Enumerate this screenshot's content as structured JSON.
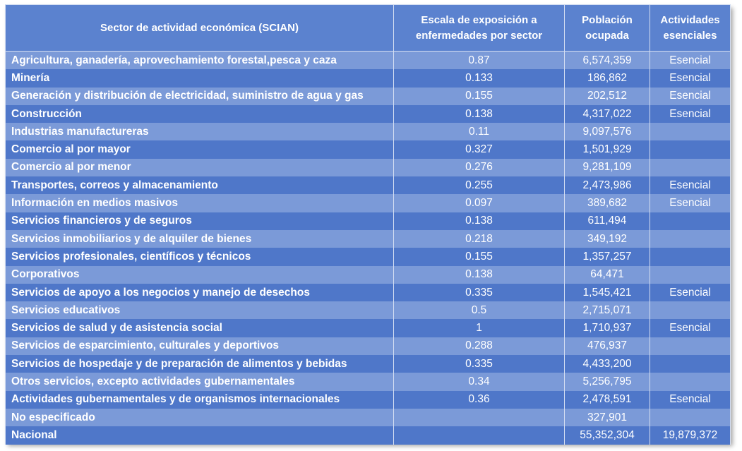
{
  "headers": {
    "sector": "Sector de actividad económica (SCIAN)",
    "scale": "Escala de exposición a enfermedades por sector",
    "population": "Población ocupada",
    "essential": "Actividades esenciales"
  },
  "rows": [
    {
      "sector": "Agricultura, ganadería, aprovechamiento forestal,pesca y caza",
      "scale": "0.87",
      "population": "6,574,359",
      "essential": "Esencial"
    },
    {
      "sector": "Minería",
      "scale": "0.133",
      "population": "186,862",
      "essential": "Esencial"
    },
    {
      "sector": "Generación y distribución de electricidad, suministro de agua y gas",
      "scale": "0.155",
      "population": "202,512",
      "essential": "Esencial"
    },
    {
      "sector": "Construcción",
      "scale": "0.138",
      "population": "4,317,022",
      "essential": "Esencial"
    },
    {
      "sector": "Industrias manufactureras",
      "scale": "0.11",
      "population": "9,097,576",
      "essential": ""
    },
    {
      "sector": "Comercio al por mayor",
      "scale": "0.327",
      "population": "1,501,929",
      "essential": ""
    },
    {
      "sector": "Comercio al por menor",
      "scale": "0.276",
      "population": "9,281,109",
      "essential": ""
    },
    {
      "sector": "Transportes, correos y almacenamiento",
      "scale": "0.255",
      "population": "2,473,986",
      "essential": "Esencial"
    },
    {
      "sector": "Información en medios masivos",
      "scale": "0.097",
      "population": "389,682",
      "essential": "Esencial"
    },
    {
      "sector": "Servicios financieros y de seguros",
      "scale": "0.138",
      "population": "611,494",
      "essential": ""
    },
    {
      "sector": "Servicios inmobiliarios y de alquiler de bienes",
      "scale": "0.218",
      "population": "349,192",
      "essential": ""
    },
    {
      "sector": "Servicios profesionales, científicos y técnicos",
      "scale": "0.155",
      "population": "1,357,257",
      "essential": ""
    },
    {
      "sector": "Corporativos",
      "scale": "0.138",
      "population": "64,471",
      "essential": ""
    },
    {
      "sector": "Servicios de apoyo a los negocios y manejo de desechos",
      "scale": "0.335",
      "population": "1,545,421",
      "essential": "Esencial"
    },
    {
      "sector": "Servicios educativos",
      "scale": "0.5",
      "population": "2,715,071",
      "essential": ""
    },
    {
      "sector": "Servicios de salud y de asistencia social",
      "scale": "1",
      "population": "1,710,937",
      "essential": "Esencial"
    },
    {
      "sector": "Servicios de esparcimiento, culturales y deportivos",
      "scale": "0.288",
      "population": "476,937",
      "essential": ""
    },
    {
      "sector": "Servicios de hospedaje y de preparación de alimentos y bebidas",
      "scale": "0.335",
      "population": "4,433,200",
      "essential": ""
    },
    {
      "sector": "Otros servicios, excepto actividades gubernamentales",
      "scale": "0.34",
      "population": "5,256,795",
      "essential": ""
    },
    {
      "sector": "Actividades gubernamentales y de organismos internacionales",
      "scale": "0.36",
      "population": "2,478,591",
      "essential": "Esencial"
    },
    {
      "sector": "No especificado",
      "scale": "",
      "population": "327,901",
      "essential": ""
    }
  ],
  "total": {
    "sector": "Nacional",
    "scale": "",
    "population": "55,352,304",
    "essential": "19,879,372"
  }
}
